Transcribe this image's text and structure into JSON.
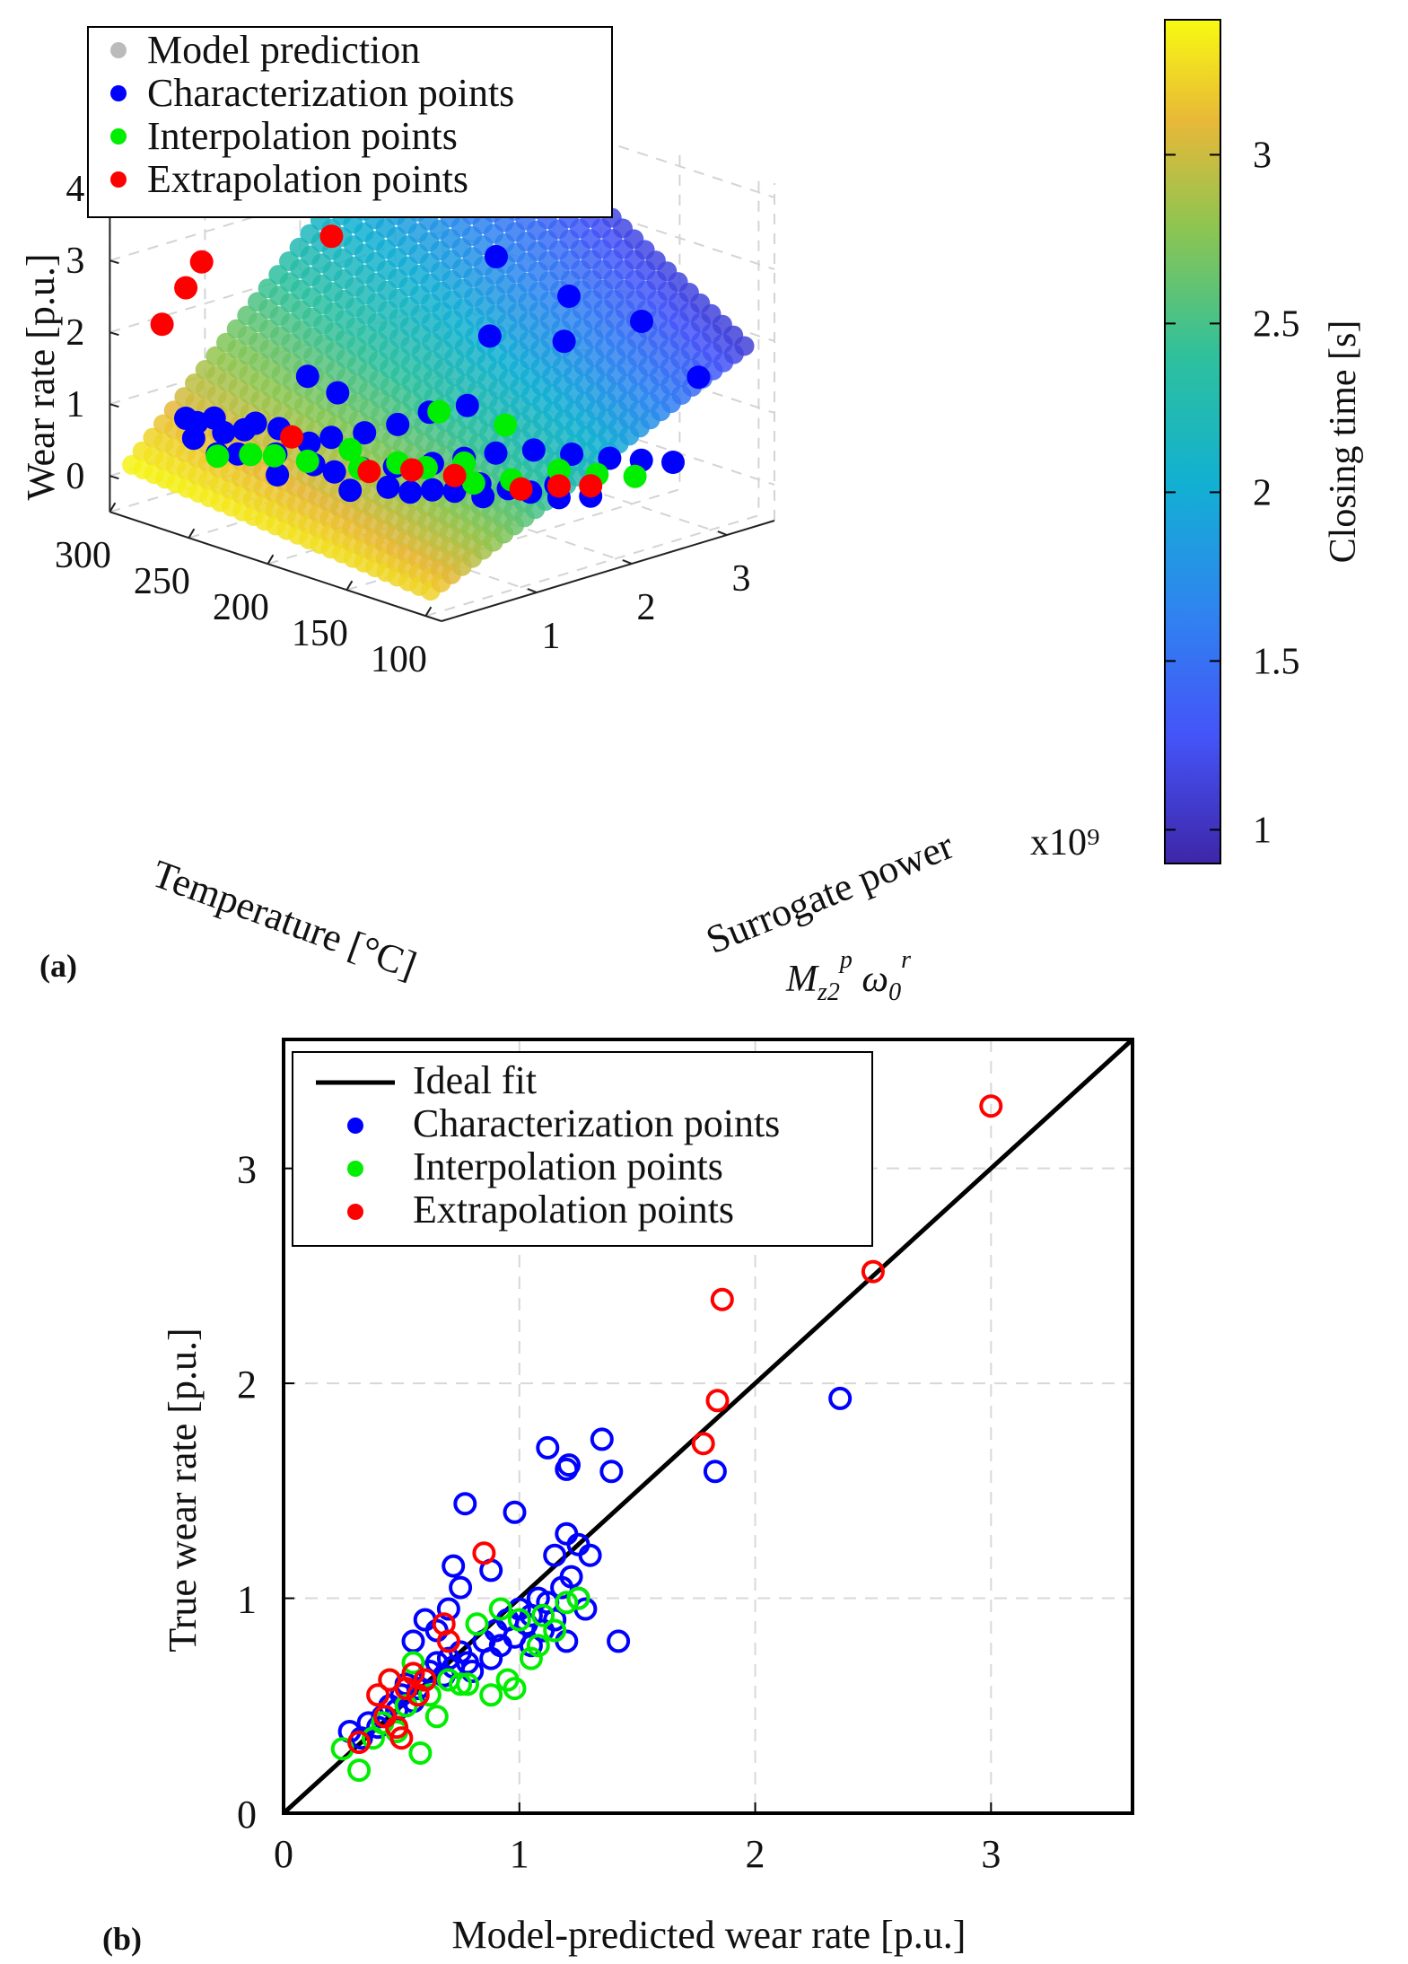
{
  "figure": {
    "panel_a_label": "(a)",
    "panel_b_label": "(b)"
  },
  "chart_data": [
    {
      "type": "scatter3d",
      "panel": "a",
      "xlabel": "Temperature [°C]",
      "ylabel_line1": "Surrogate power",
      "ylabel_line2": "M_z2^p ω0^r",
      "zlabel": "Wear rate [p.u.]",
      "x_ticks": [
        "300",
        "250",
        "200",
        "150",
        "100"
      ],
      "y_ticks": [
        "1",
        "2",
        "3"
      ],
      "y_exponent": "x10⁹",
      "z_ticks": [
        "0",
        "1",
        "2",
        "3",
        "4"
      ],
      "xlim": [
        90,
        300
      ],
      "ylim": [
        0,
        3.5
      ],
      "zlim": [
        -0.5,
        4.2
      ],
      "grid": true,
      "legend_position": "top-left",
      "legend": [
        {
          "label": "Model prediction",
          "color": "#bbbbbb"
        },
        {
          "label": "Characterization points",
          "color": "#0000ff"
        },
        {
          "label": "Interpolation points",
          "color": "#00ee00"
        },
        {
          "label": "Extrapolation points",
          "color": "#ff0000"
        }
      ],
      "colorbar": {
        "label": "Closing time [s]",
        "range": [
          0.9,
          3.4
        ],
        "ticks": [
          "1",
          "1.5",
          "2",
          "2.5",
          "3"
        ],
        "colormap": "parula"
      },
      "surface_model": "wear rate = 0.2 + 1.15 * (surrogate power / 1e9), rising with temperature",
      "points": {
        "characterization": [
          {
            "T": 270,
            "P": 0.3,
            "W": 0.9
          },
          {
            "T": 266,
            "P": 0.35,
            "W": 0.85
          },
          {
            "T": 262,
            "P": 0.25,
            "W": 0.7
          },
          {
            "T": 258,
            "P": 0.4,
            "W": 0.95
          },
          {
            "T": 255,
            "P": 0.45,
            "W": 0.75
          },
          {
            "T": 250,
            "P": 0.3,
            "W": 0.55
          },
          {
            "T": 248,
            "P": 0.55,
            "W": 0.8
          },
          {
            "T": 244,
            "P": 0.6,
            "W": 0.9
          },
          {
            "T": 240,
            "P": 0.35,
            "W": 0.6
          },
          {
            "T": 235,
            "P": 0.7,
            "W": 0.85
          },
          {
            "T": 232,
            "P": 0.95,
            "W": 1.5
          },
          {
            "T": 228,
            "P": 1.2,
            "W": 1.2
          },
          {
            "T": 225,
            "P": 0.5,
            "W": 0.65
          },
          {
            "T": 222,
            "P": 0.8,
            "W": 0.7
          },
          {
            "T": 218,
            "P": 0.4,
            "W": 0.45
          },
          {
            "T": 214,
            "P": 0.9,
            "W": 0.8
          },
          {
            "T": 210,
            "P": 0.65,
            "W": 0.55
          },
          {
            "T": 205,
            "P": 1.1,
            "W": 0.85
          },
          {
            "T": 200,
            "P": 0.7,
            "W": 0.5
          },
          {
            "T": 196,
            "P": 1.3,
            "W": 0.95
          },
          {
            "T": 192,
            "P": 0.85,
            "W": 0.55
          },
          {
            "T": 188,
            "P": 1.5,
            "W": 1.1
          },
          {
            "T": 184,
            "P": 0.6,
            "W": 0.4
          },
          {
            "T": 180,
            "P": 1.0,
            "W": 0.6
          },
          {
            "T": 176,
            "P": 1.7,
            "W": 1.2
          },
          {
            "T": 172,
            "P": 0.8,
            "W": 0.45
          },
          {
            "T": 168,
            "P": 1.2,
            "W": 0.65
          },
          {
            "T": 164,
            "P": 0.9,
            "W": 0.4
          },
          {
            "T": 160,
            "P": 1.4,
            "W": 0.7
          },
          {
            "T": 156,
            "P": 1.0,
            "W": 0.45
          },
          {
            "T": 152,
            "P": 1.6,
            "W": 0.75
          },
          {
            "T": 148,
            "P": 1.1,
            "W": 0.45
          },
          {
            "T": 144,
            "P": 1.3,
            "W": 0.5
          },
          {
            "T": 140,
            "P": 1.8,
            "W": 0.8
          },
          {
            "T": 136,
            "P": 1.2,
            "W": 0.42
          },
          {
            "T": 132,
            "P": 1.4,
            "W": 0.48
          },
          {
            "T": 128,
            "P": 2.0,
            "W": 0.75
          },
          {
            "T": 124,
            "P": 1.5,
            "W": 0.45
          },
          {
            "T": 120,
            "P": 1.7,
            "W": 0.5
          },
          {
            "T": 116,
            "P": 2.2,
            "W": 0.7
          },
          {
            "T": 112,
            "P": 1.6,
            "W": 0.42
          },
          {
            "T": 108,
            "P": 2.4,
            "W": 0.65
          },
          {
            "T": 104,
            "P": 1.8,
            "W": 0.42
          },
          {
            "T": 100,
            "P": 2.6,
            "W": 0.6
          },
          {
            "T": 230,
            "P": 2.9,
            "W": 2.4
          },
          {
            "T": 150,
            "P": 3.1,
            "W": 2.0
          },
          {
            "T": 175,
            "P": 2.7,
            "W": 1.7
          },
          {
            "T": 210,
            "P": 2.5,
            "W": 1.6
          },
          {
            "T": 120,
            "P": 3.2,
            "W": 1.4
          },
          {
            "T": 190,
            "P": 3.0,
            "W": 2.1
          }
        ],
        "interpolation": [
          {
            "T": 262,
            "P": 0.5,
            "W": 0.35
          },
          {
            "T": 250,
            "P": 0.65,
            "W": 0.4
          },
          {
            "T": 238,
            "P": 0.7,
            "W": 0.45
          },
          {
            "T": 226,
            "P": 0.85,
            "W": 0.4
          },
          {
            "T": 214,
            "P": 1.1,
            "W": 0.55
          },
          {
            "T": 202,
            "P": 1.0,
            "W": 0.42
          },
          {
            "T": 190,
            "P": 1.2,
            "W": 0.5
          },
          {
            "T": 178,
            "P": 1.3,
            "W": 0.48
          },
          {
            "T": 166,
            "P": 1.5,
            "W": 0.55
          },
          {
            "T": 154,
            "P": 1.4,
            "W": 0.4
          },
          {
            "T": 142,
            "P": 1.6,
            "W": 0.45
          },
          {
            "T": 130,
            "P": 1.9,
            "W": 0.55
          },
          {
            "T": 118,
            "P": 2.1,
            "W": 0.5
          },
          {
            "T": 106,
            "P": 2.3,
            "W": 0.48
          },
          {
            "T": 200,
            "P": 1.8,
            "W": 0.9
          },
          {
            "T": 170,
            "P": 2.0,
            "W": 0.85
          }
        ],
        "extrapolation": [
          {
            "T": 285,
            "P": 0.3,
            "W": 2.1
          },
          {
            "T": 282,
            "P": 0.5,
            "W": 2.55
          },
          {
            "T": 278,
            "P": 0.6,
            "W": 2.9
          },
          {
            "T": 250,
            "P": 1.5,
            "W": 3.1
          },
          {
            "T": 265,
            "P": 3.35,
            "W": 4.4
          },
          {
            "T": 230,
            "P": 0.75,
            "W": 0.75
          },
          {
            "T": 190,
            "P": 0.9,
            "W": 0.5
          },
          {
            "T": 175,
            "P": 1.1,
            "W": 0.55
          },
          {
            "T": 160,
            "P": 1.3,
            "W": 0.5
          },
          {
            "T": 130,
            "P": 1.5,
            "W": 0.45
          },
          {
            "T": 118,
            "P": 1.7,
            "W": 0.5
          },
          {
            "T": 110,
            "P": 1.9,
            "W": 0.48
          }
        ]
      }
    },
    {
      "type": "scatter",
      "panel": "b",
      "xlabel": "Model-predicted wear rate [p.u.]",
      "ylabel": "True wear rate [p.u.]",
      "xlim": [
        0,
        3.6
      ],
      "ylim": [
        0,
        3.6
      ],
      "x_ticks": [
        "0",
        "1",
        "2",
        "3"
      ],
      "y_ticks": [
        "0",
        "1",
        "2",
        "3"
      ],
      "grid": true,
      "legend_position": "top-left",
      "ideal_fit": {
        "label": "Ideal fit",
        "x": [
          0,
          3.6
        ],
        "y": [
          0,
          3.6
        ]
      },
      "series": [
        {
          "name": "Characterization points",
          "color": "#0000ff",
          "x": [
            0.28,
            0.33,
            0.36,
            0.4,
            0.42,
            0.45,
            0.48,
            0.5,
            0.52,
            0.55,
            0.57,
            0.6,
            0.62,
            0.65,
            0.68,
            0.7,
            0.72,
            0.75,
            0.78,
            0.8,
            0.85,
            0.88,
            0.9,
            0.92,
            0.95,
            0.98,
            1.0,
            1.03,
            1.05,
            1.08,
            1.1,
            1.12,
            1.15,
            1.18,
            1.2,
            1.22,
            1.25,
            1.28,
            1.3,
            0.55,
            0.6,
            0.65,
            0.7,
            0.75,
            0.77,
            0.98,
            1.12,
            1.2,
            1.21,
            1.35,
            1.39,
            1.2,
            1.42,
            1.83,
            2.36,
            0.88,
            0.72,
            1.05,
            1.15,
            1.25
          ],
          "y": [
            0.38,
            0.35,
            0.42,
            0.4,
            0.45,
            0.5,
            0.48,
            0.55,
            0.6,
            0.52,
            0.58,
            0.62,
            0.66,
            0.7,
            0.64,
            0.72,
            0.68,
            0.75,
            0.7,
            0.66,
            0.8,
            0.72,
            0.85,
            0.78,
            0.9,
            0.82,
            0.95,
            0.88,
            0.92,
            1.0,
            0.85,
            0.98,
            0.9,
            1.05,
            0.8,
            1.1,
            1.0,
            0.95,
            1.2,
            0.8,
            0.9,
            0.85,
            0.95,
            1.05,
            1.44,
            1.4,
            1.7,
            1.6,
            1.62,
            1.74,
            1.59,
            1.3,
            0.8,
            1.59,
            1.93,
            1.13,
            1.15,
            0.78,
            1.2,
            1.25
          ]
        },
        {
          "name": "Interpolation points",
          "color": "#00ee00",
          "x": [
            0.25,
            0.32,
            0.38,
            0.42,
            0.48,
            0.52,
            0.58,
            0.62,
            0.7,
            0.75,
            0.82,
            0.88,
            0.92,
            0.95,
            1.0,
            1.05,
            1.1,
            1.15,
            1.2,
            1.25,
            0.45,
            0.55,
            0.65,
            0.78,
            0.98,
            1.08
          ],
          "y": [
            0.3,
            0.2,
            0.35,
            0.42,
            0.38,
            0.5,
            0.28,
            0.55,
            0.62,
            0.6,
            0.88,
            0.55,
            0.95,
            0.62,
            0.9,
            0.72,
            0.92,
            0.85,
            0.98,
            1.0,
            0.62,
            0.7,
            0.45,
            0.6,
            0.58,
            0.78
          ]
        },
        {
          "name": "Extrapolation points",
          "color": "#ff0000",
          "x": [
            0.32,
            0.4,
            0.43,
            0.45,
            0.48,
            0.5,
            0.52,
            0.55,
            0.57,
            0.6,
            0.68,
            0.7,
            0.85,
            1.78,
            1.84,
            1.86,
            2.5,
            3.0
          ],
          "y": [
            0.33,
            0.55,
            0.45,
            0.62,
            0.4,
            0.35,
            0.58,
            0.65,
            0.55,
            0.62,
            0.88,
            0.8,
            1.21,
            1.72,
            1.92,
            2.39,
            2.52,
            3.29
          ]
        }
      ]
    }
  ]
}
